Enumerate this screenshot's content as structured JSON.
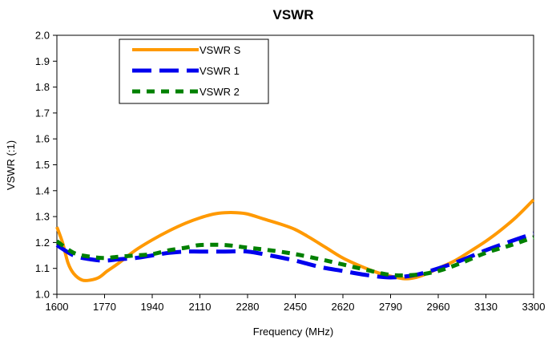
{
  "chart_data": {
    "type": "line",
    "title": "VSWR",
    "xlabel": "Frequency (MHz)",
    "ylabel": "VSWR (:1)",
    "xlim": [
      1600,
      3300
    ],
    "ylim": [
      1.0,
      2.0
    ],
    "xticks": [
      "1600",
      "1770",
      "1940",
      "2110",
      "2280",
      "2450",
      "2620",
      "2790",
      "2960",
      "3130",
      "3300"
    ],
    "yticks": [
      "1.0",
      "1.1",
      "1.2",
      "1.3",
      "1.4",
      "1.5",
      "1.6",
      "1.7",
      "1.8",
      "1.9",
      "2.0"
    ],
    "grid": false,
    "legend_position": "top-left",
    "series": [
      {
        "name": "VSWR S",
        "color": "#FF9900",
        "style": "solid",
        "x": [
          1600,
          1620,
          1640,
          1660,
          1690,
          1720,
          1750,
          1780,
          1820,
          1880,
          1940,
          2000,
          2060,
          2110,
          2160,
          2200,
          2240,
          2280,
          2340,
          2400,
          2450,
          2500,
          2560,
          2620,
          2680,
          2740,
          2790,
          2840,
          2880,
          2920,
          2960,
          3020,
          3080,
          3130,
          3180,
          3240,
          3300
        ],
        "values": [
          1.26,
          1.2,
          1.12,
          1.08,
          1.055,
          1.055,
          1.065,
          1.09,
          1.12,
          1.17,
          1.21,
          1.245,
          1.275,
          1.295,
          1.31,
          1.315,
          1.315,
          1.31,
          1.29,
          1.27,
          1.25,
          1.22,
          1.18,
          1.14,
          1.11,
          1.085,
          1.07,
          1.06,
          1.065,
          1.08,
          1.1,
          1.13,
          1.17,
          1.205,
          1.245,
          1.3,
          1.365
        ]
      },
      {
        "name": "VSWR 1",
        "color": "#0000EE",
        "style": "dashed",
        "x": [
          1600,
          1660,
          1720,
          1770,
          1820,
          1880,
          1940,
          2000,
          2060,
          2110,
          2200,
          2280,
          2360,
          2450,
          2540,
          2620,
          2700,
          2790,
          2880,
          2960,
          3040,
          3130,
          3220,
          3300
        ],
        "values": [
          1.19,
          1.15,
          1.135,
          1.13,
          1.135,
          1.14,
          1.15,
          1.16,
          1.165,
          1.165,
          1.165,
          1.165,
          1.15,
          1.13,
          1.105,
          1.09,
          1.075,
          1.065,
          1.075,
          1.1,
          1.13,
          1.17,
          1.205,
          1.235
        ]
      },
      {
        "name": "VSWR 2",
        "color": "#008000",
        "style": "dotted",
        "x": [
          1600,
          1660,
          1720,
          1770,
          1820,
          1880,
          1940,
          2000,
          2060,
          2110,
          2200,
          2280,
          2360,
          2450,
          2540,
          2620,
          2700,
          2790,
          2880,
          2960,
          3040,
          3130,
          3220,
          3300
        ],
        "values": [
          1.205,
          1.16,
          1.145,
          1.14,
          1.145,
          1.15,
          1.155,
          1.17,
          1.18,
          1.19,
          1.19,
          1.18,
          1.17,
          1.155,
          1.135,
          1.115,
          1.095,
          1.075,
          1.075,
          1.09,
          1.12,
          1.16,
          1.19,
          1.22
        ]
      }
    ]
  }
}
